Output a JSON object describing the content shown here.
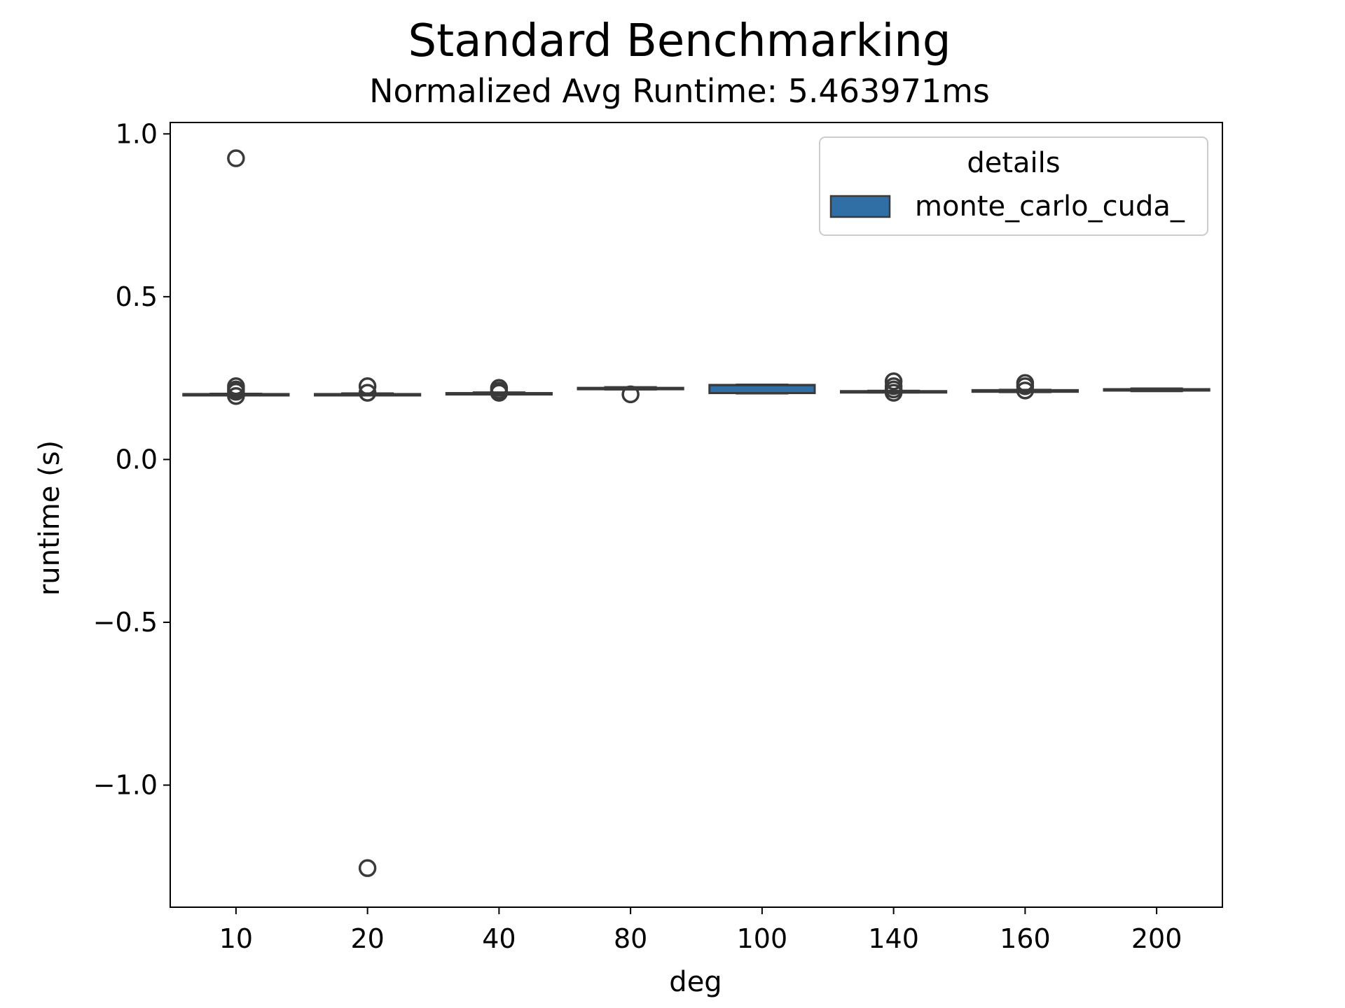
{
  "chart_data": {
    "type": "box",
    "title": "Standard Benchmarking",
    "subtitle": "Normalized Avg Runtime: 5.463971ms",
    "xlabel": "deg",
    "ylabel": "runtime (s)",
    "categories": [
      "10",
      "20",
      "40",
      "80",
      "100",
      "140",
      "160",
      "200"
    ],
    "yticks": [
      1.0,
      0.5,
      0.0,
      -0.5,
      -1.0
    ],
    "ytick_labels": [
      "1.0",
      "0.5",
      "0.0",
      "−0.5",
      "−1.0"
    ],
    "ylim": [
      -1.375,
      1.035
    ],
    "grid": false,
    "legend": {
      "title": "details",
      "placement": "top-right",
      "entries": [
        "monte_carlo_cuda_"
      ]
    },
    "series": [
      {
        "name": "monte_carlo_cuda_",
        "color": "#2f6fa6",
        "boxes": [
          {
            "category": "10",
            "whisker_low": 0.198,
            "q1": 0.199,
            "median": 0.2,
            "q3": 0.201,
            "whisker_high": 0.202,
            "outliers": [
              0.925,
              0.225,
              0.215,
              0.208,
              0.195
            ]
          },
          {
            "category": "20",
            "whisker_low": 0.198,
            "q1": 0.199,
            "median": 0.2,
            "q3": 0.201,
            "whisker_high": 0.203,
            "outliers": [
              0.225,
              0.205,
              -1.255
            ]
          },
          {
            "category": "40",
            "whisker_low": 0.2,
            "q1": 0.201,
            "median": 0.202,
            "q3": 0.204,
            "whisker_high": 0.206,
            "outliers": [
              0.22,
              0.212,
              0.205
            ]
          },
          {
            "category": "80",
            "whisker_low": 0.215,
            "q1": 0.216,
            "median": 0.218,
            "q3": 0.22,
            "whisker_high": 0.222,
            "outliers": [
              0.2
            ]
          },
          {
            "category": "100",
            "whisker_low": 0.203,
            "q1": 0.204,
            "median": 0.228,
            "q3": 0.229,
            "whisker_high": 0.23,
            "outliers": []
          },
          {
            "category": "140",
            "whisker_low": 0.206,
            "q1": 0.207,
            "median": 0.208,
            "q3": 0.21,
            "whisker_high": 0.211,
            "outliers": [
              0.24,
              0.225,
              0.215,
              0.205
            ]
          },
          {
            "category": "160",
            "whisker_low": 0.207,
            "q1": 0.208,
            "median": 0.21,
            "q3": 0.213,
            "whisker_high": 0.214,
            "outliers": [
              0.235,
              0.225,
              0.212
            ]
          },
          {
            "category": "200",
            "whisker_low": 0.21,
            "q1": 0.212,
            "median": 0.214,
            "q3": 0.216,
            "whisker_high": 0.218,
            "outliers": []
          }
        ]
      }
    ]
  }
}
